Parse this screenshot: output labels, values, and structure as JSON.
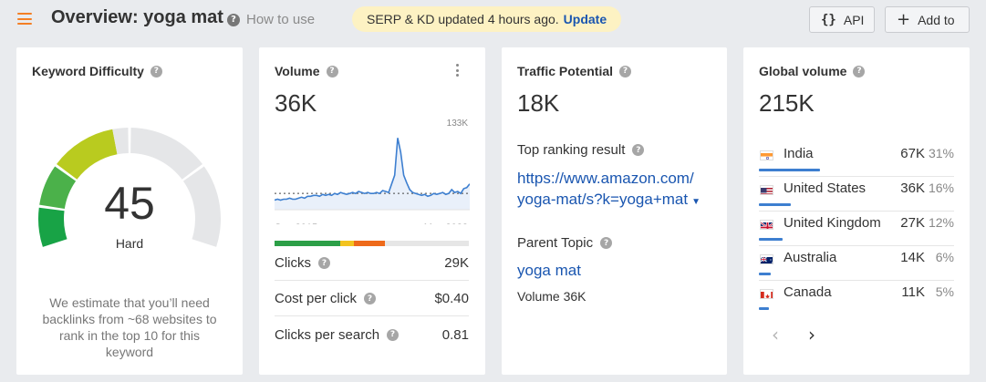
{
  "header": {
    "title": "Overview: yoga mat",
    "how_to_use": "How to use",
    "notice_text": "SERP & KD updated 4 hours ago.",
    "notice_link": "Update",
    "api_label": "API",
    "api_icon": "{}",
    "add_label": "Add to",
    "add_icon": "+"
  },
  "keyword_difficulty": {
    "title": "Keyword Difficulty",
    "value": "45",
    "level": "Hard",
    "description": "We estimate that you’ll need backlinks from ~68 websites to rank in the top 10 for this keyword",
    "gauge_fill": 45,
    "colors": {
      "red_green": "#18a346",
      "green": "#4bb14a",
      "yellow": "#b9cb1f",
      "empty": "#e5e6e8"
    }
  },
  "volume": {
    "title": "Volume",
    "value": "36K",
    "chart_max_label": "133K",
    "chart_start_label": "Sep 2015",
    "chart_end_label": "May 2023",
    "chart_series": [
      10,
      11,
      10,
      11,
      11,
      12,
      11,
      11,
      12,
      13,
      12,
      14,
      14,
      15,
      15,
      14,
      16,
      15,
      16,
      15,
      17,
      16,
      18,
      17,
      16,
      17,
      18,
      17,
      19,
      18,
      17,
      18,
      17,
      17,
      18,
      17,
      20,
      19,
      18,
      27,
      36,
      75,
      60,
      36,
      28,
      21,
      18,
      17,
      16,
      15,
      16,
      14,
      15,
      17,
      16,
      17,
      18,
      16,
      17,
      21,
      18,
      19,
      17,
      22,
      23,
      27
    ],
    "chart_avg": 17,
    "cpc_segments": [
      {
        "share": 0.34,
        "color": "#2c9f47"
      },
      {
        "share": 0.07,
        "color": "#f3c31f"
      },
      {
        "share": 0.16,
        "color": "#ee6a1a"
      },
      {
        "share": 0.43,
        "color": "#e6e6e6"
      }
    ],
    "metrics": [
      {
        "label": "Clicks",
        "value": "29K"
      },
      {
        "label": "Cost per click",
        "value": "$0.40"
      },
      {
        "label": "Clicks per search",
        "value": "0.81"
      }
    ]
  },
  "traffic_potential": {
    "title": "Traffic Potential",
    "value": "18K",
    "top_result_label": "Top ranking result",
    "top_result_url_line1": "https://www.amazon.com/",
    "top_result_url_line2": "yoga-mat/s?k=yoga+mat",
    "parent_topic_label": "Parent Topic",
    "parent_topic": "yoga mat",
    "parent_volume": "Volume 36K"
  },
  "global_volume": {
    "title": "Global volume",
    "value": "215K",
    "countries": [
      {
        "name": "India",
        "volume": "67K",
        "share": "31%",
        "bar": 0.31,
        "flag": "india-flag"
      },
      {
        "name": "United States",
        "volume": "36K",
        "share": "16%",
        "bar": 0.16,
        "flag": "us-flag"
      },
      {
        "name": "United Kingdom",
        "volume": "27K",
        "share": "12%",
        "bar": 0.12,
        "flag": "uk-flag"
      },
      {
        "name": "Australia",
        "volume": "14K",
        "share": "6%",
        "bar": 0.06,
        "flag": "australia-flag"
      },
      {
        "name": "Canada",
        "volume": "11K",
        "share": "5%",
        "bar": 0.05,
        "flag": "canada-flag"
      }
    ],
    "pager_prev": "‹",
    "pager_next": "›",
    "bar_color": "#3d7fd0"
  }
}
